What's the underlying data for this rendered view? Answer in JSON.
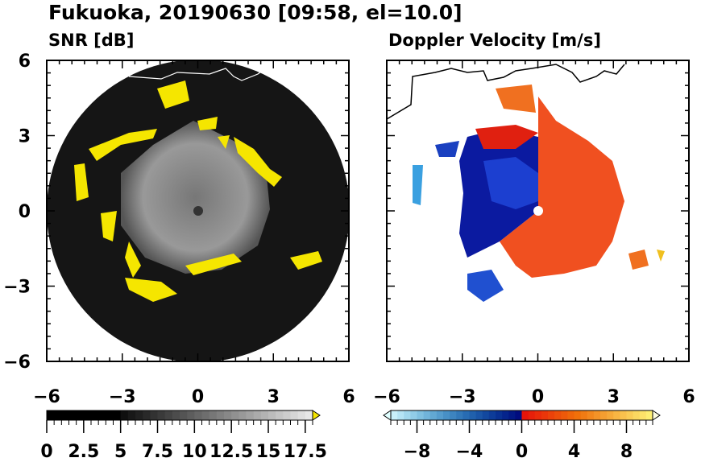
{
  "title": "Fukuoka, 20190630 [09:58, el=10.0]",
  "chart_data": [
    {
      "type": "heatmap",
      "title": "SNR [dB]",
      "xlim": [
        -6,
        6
      ],
      "ylim": [
        -6,
        6
      ],
      "xticks": [
        -6,
        -3,
        0,
        3,
        6
      ],
      "yticks": [
        -6,
        -3,
        0,
        3,
        6
      ],
      "tick_labels": [
        "−6",
        "−3",
        "0",
        "3",
        "6"
      ],
      "colorbar": {
        "min": 0,
        "max": 18,
        "extend": "max",
        "ticks": [
          0,
          2.5,
          5,
          7.5,
          10,
          12.5,
          15,
          17.5
        ],
        "tick_labels": [
          "0",
          "2.5",
          "5",
          "7.5",
          "10",
          "12.5",
          "15",
          "17.5"
        ],
        "over_color": "#f5e600"
      }
    },
    {
      "type": "heatmap",
      "title": "Doppler Velocity [m/s]",
      "xlim": [
        -6,
        6
      ],
      "ylim": [
        -6,
        6
      ],
      "xticks": [
        -6,
        -3,
        0,
        3,
        6
      ],
      "tick_labels": [
        "−6",
        "−3",
        "0",
        "3",
        "6"
      ],
      "colorbar": {
        "min": -10,
        "max": 10,
        "extend": "both",
        "ticks": [
          -8,
          -4,
          0,
          4,
          8
        ],
        "tick_labels": [
          "−8",
          "−4",
          "0",
          "4",
          "8"
        ]
      }
    }
  ]
}
